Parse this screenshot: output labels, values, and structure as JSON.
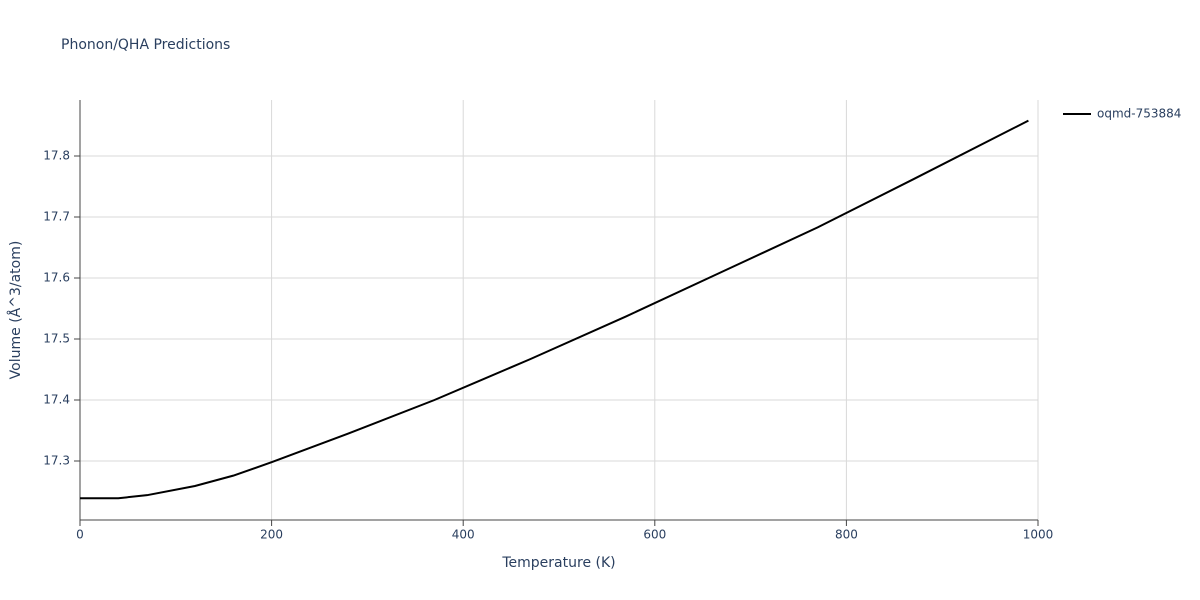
{
  "chart_data": {
    "type": "line",
    "title": "Phonon/QHA Predictions",
    "x_label": "Temperature (K)",
    "y_label": "Volume (Å^3/atom)",
    "x": [
      0,
      40,
      70,
      120,
      160,
      200,
      280,
      370,
      470,
      570,
      670,
      770,
      870,
      990
    ],
    "series": [
      {
        "name": "oqmd-753884",
        "color": "#000000",
        "values": [
          17.239,
          17.239,
          17.244,
          17.259,
          17.276,
          17.298,
          17.345,
          17.4,
          17.467,
          17.537,
          17.61,
          17.683,
          17.762,
          17.858
        ]
      }
    ],
    "xlim": [
      0,
      1000
    ],
    "xticks": [
      0,
      200,
      400,
      600,
      800,
      1000
    ],
    "ylim": [
      17.2033,
      17.8918
    ],
    "yticks": [
      17.3,
      17.4,
      17.5,
      17.6,
      17.7,
      17.8
    ],
    "grid": true,
    "legend": "right"
  }
}
